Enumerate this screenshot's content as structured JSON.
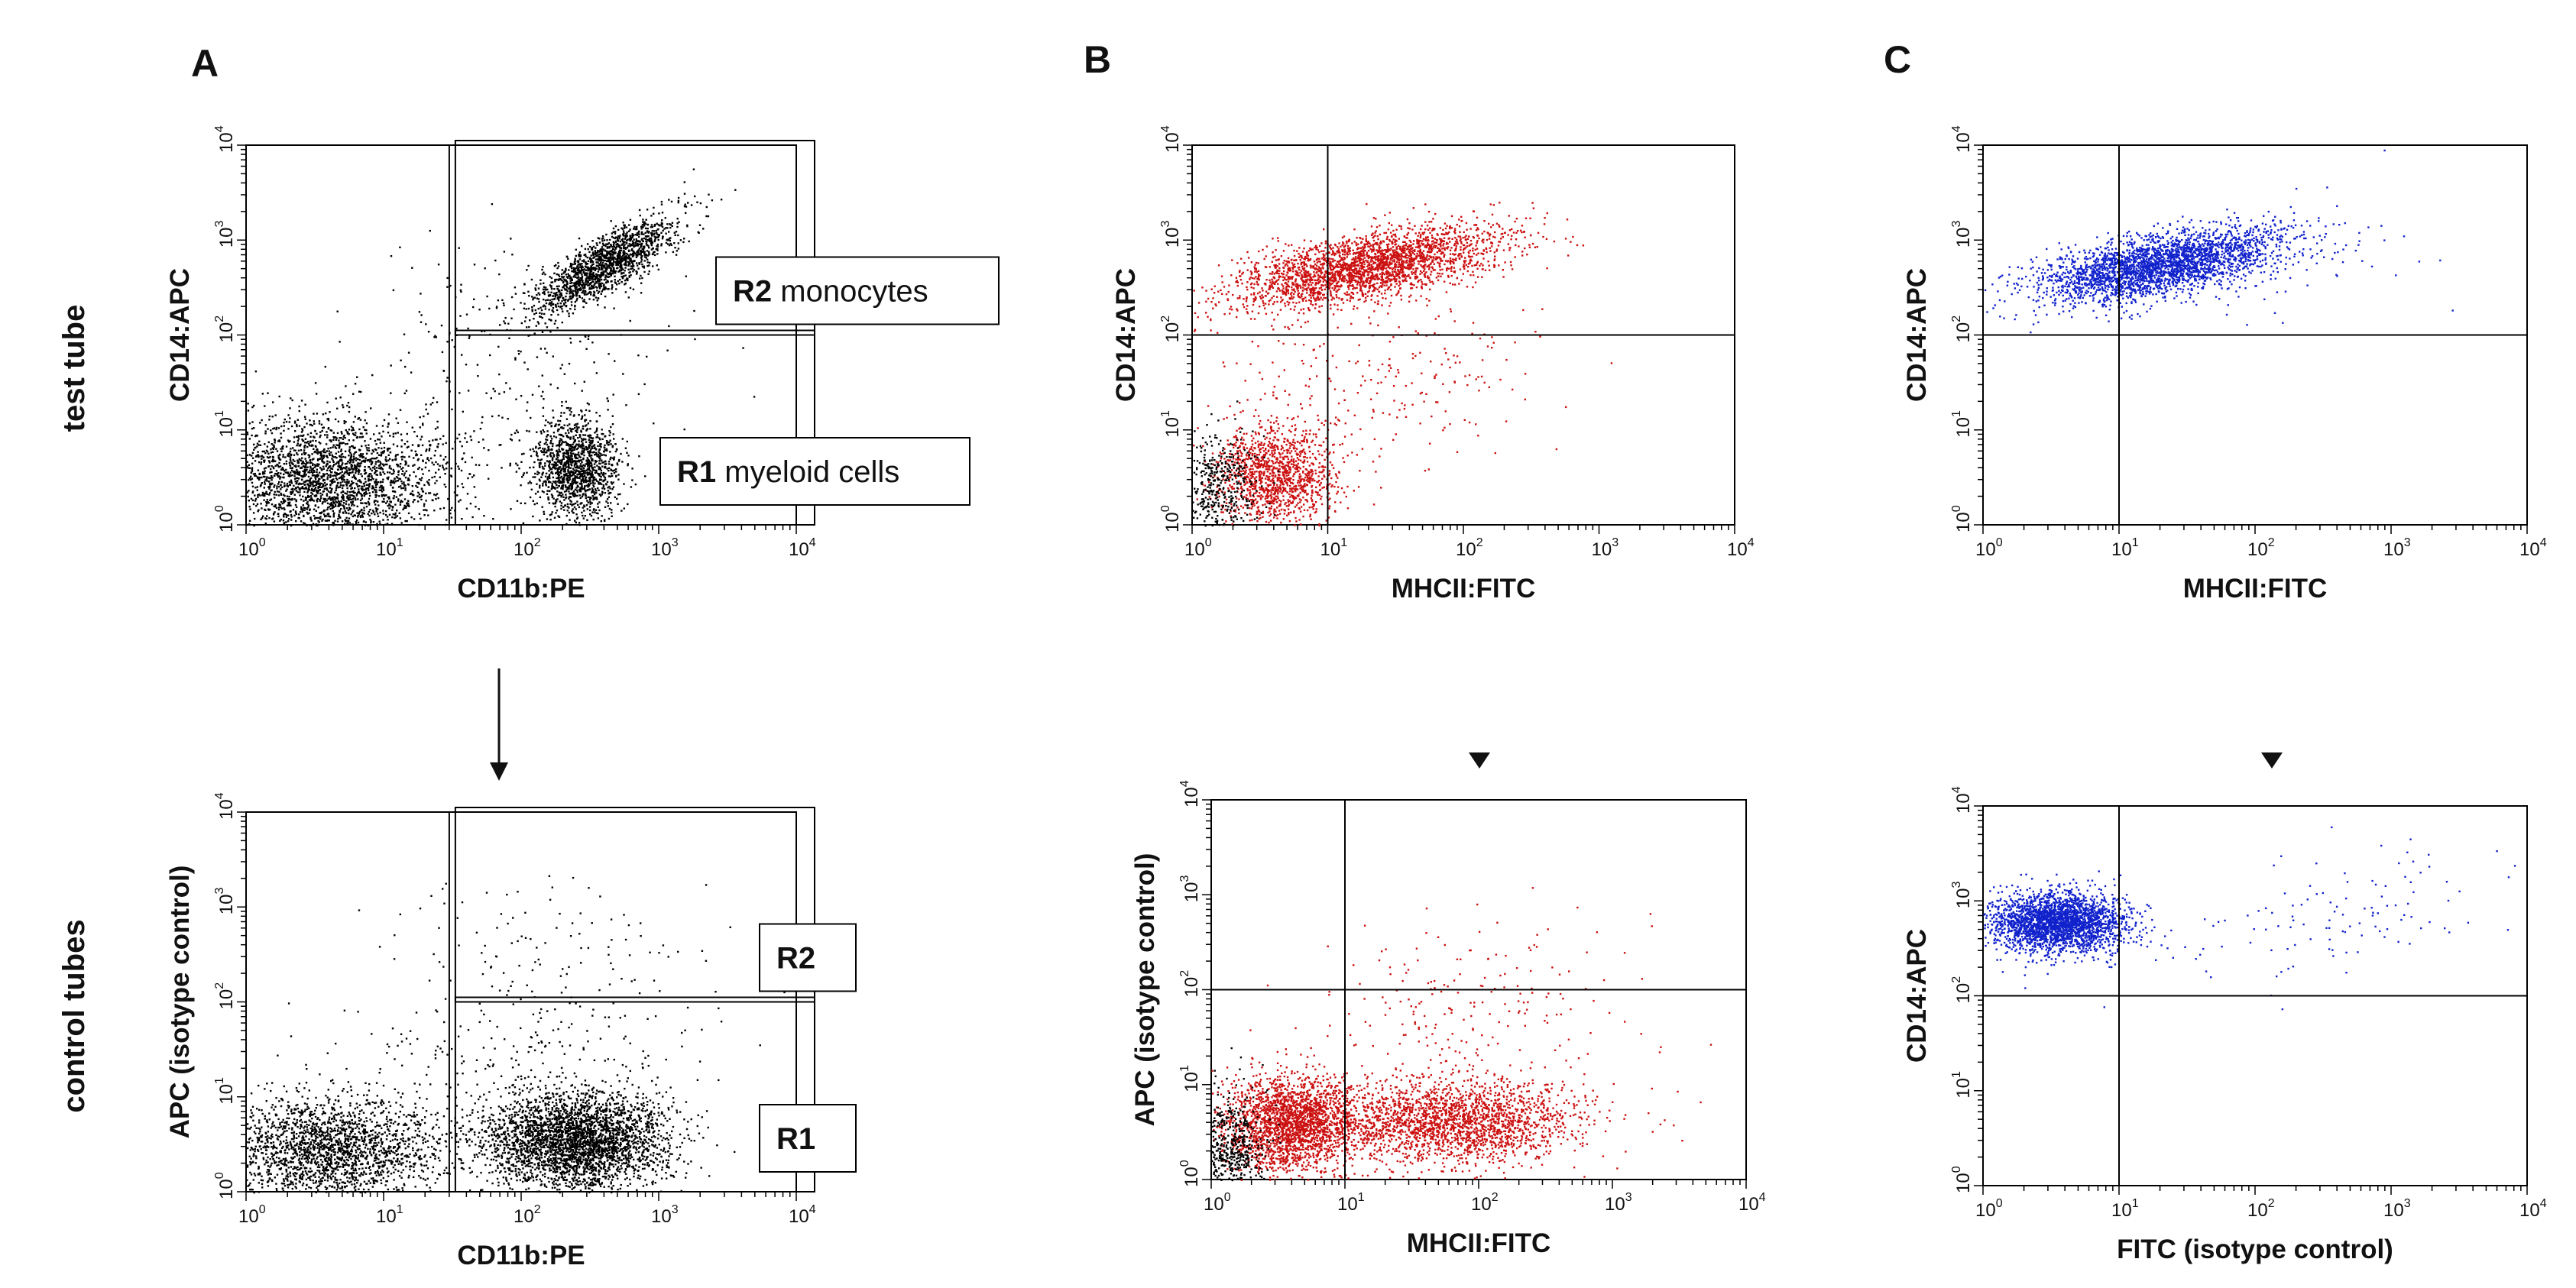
{
  "panel_letters": {
    "a": "A",
    "b": "B",
    "c": "C"
  },
  "row_labels": {
    "top": "test tube",
    "bottom": "control tubes"
  },
  "colors": {
    "points_black": "#000000",
    "points_red": "#cc1111",
    "points_blue": "#1122cc",
    "gates": "#000000"
  },
  "chart_data": [
    {
      "id": "A-top",
      "type": "scatter",
      "title": "",
      "xlabel": "CD11b:PE",
      "ylabel": "CD14:APC",
      "scale": "log",
      "xlim": [
        1,
        10000
      ],
      "ylim": [
        1,
        10000
      ],
      "tick_labels": [
        "10^0",
        "10^1",
        "10^2",
        "10^3",
        "10^4"
      ],
      "quadrant_lines": {
        "x": 30,
        "y": 100
      },
      "gates": [
        {
          "name": "R2",
          "text": "monocytes",
          "xrange": [
            30,
            10000
          ],
          "yrange": [
            100,
            10000
          ]
        },
        {
          "name": "R1",
          "text": "myeloid cells",
          "xrange": [
            30,
            10000
          ],
          "yrange": [
            1,
            100
          ]
        }
      ],
      "series": [
        {
          "color": "black",
          "clusters": [
            {
              "cx": 4,
              "cy": 3,
              "sx": 0.45,
              "sy": 0.33,
              "n": 2600
            },
            {
              "cx": 250,
              "cy": 4,
              "sx": 0.16,
              "sy": 0.25,
              "n": 1300
            },
            {
              "cx": 400,
              "cy": 550,
              "sx": 0.25,
              "sy": 0.15,
              "n": 1600,
              "slope": 0.8
            },
            {
              "cx": 100,
              "cy": 50,
              "sx": 0.6,
              "sy": 0.7,
              "n": 260
            }
          ]
        }
      ]
    },
    {
      "id": "A-bottom",
      "type": "scatter",
      "title": "",
      "xlabel": "CD11b:PE",
      "ylabel": "APC (isotype control)",
      "scale": "log",
      "xlim": [
        1,
        10000
      ],
      "ylim": [
        1,
        10000
      ],
      "tick_labels": [
        "10^0",
        "10^1",
        "10^2",
        "10^3",
        "10^4"
      ],
      "quadrant_lines": {
        "x": 30,
        "y": 100
      },
      "gates": [
        {
          "name": "R2",
          "text": "",
          "xrange": [
            30,
            10000
          ],
          "yrange": [
            100,
            10000
          ]
        },
        {
          "name": "R1",
          "text": "",
          "xrange": [
            30,
            10000
          ],
          "yrange": [
            1,
            100
          ]
        }
      ],
      "series": [
        {
          "color": "black",
          "clusters": [
            {
              "cx": 4,
              "cy": 2.8,
              "sx": 0.42,
              "sy": 0.3,
              "n": 2200
            },
            {
              "cx": 250,
              "cy": 3.5,
              "sx": 0.33,
              "sy": 0.25,
              "n": 3200
            },
            {
              "cx": 200,
              "cy": 400,
              "sx": 0.6,
              "sy": 0.35,
              "n": 90
            },
            {
              "cx": 100,
              "cy": 30,
              "sx": 0.6,
              "sy": 0.5,
              "n": 250
            }
          ]
        }
      ]
    },
    {
      "id": "B-top",
      "type": "scatter",
      "title": "",
      "xlabel": "MHCII:FITC",
      "ylabel": "CD14:APC",
      "scale": "log",
      "xlim": [
        1,
        10000
      ],
      "ylim": [
        1,
        10000
      ],
      "tick_labels": [
        "10^0",
        "10^1",
        "10^2",
        "10^3",
        "10^4"
      ],
      "quadrant_lines": {
        "x": 10,
        "y": 100
      },
      "series": [
        {
          "color": "red",
          "clusters": [
            {
              "cx": 20,
              "cy": 550,
              "sx": 0.5,
              "sy": 0.17,
              "n": 2700,
              "slope": 0.25
            },
            {
              "cx": 4,
              "cy": 3.5,
              "sx": 0.22,
              "sy": 0.28,
              "n": 1300
            },
            {
              "cx": 30,
              "cy": 40,
              "sx": 0.6,
              "sy": 0.5,
              "n": 250
            }
          ]
        },
        {
          "color": "black",
          "clusters": [
            {
              "cx": 1.5,
              "cy": 2.5,
              "sx": 0.15,
              "sy": 0.3,
              "n": 450
            }
          ]
        }
      ]
    },
    {
      "id": "B-bottom",
      "type": "scatter",
      "title": "",
      "xlabel": "MHCII:FITC",
      "ylabel": "APC (isotype control)",
      "scale": "log",
      "xlim": [
        1,
        10000
      ],
      "ylim": [
        1,
        10000
      ],
      "tick_labels": [
        "10^0",
        "10^1",
        "10^2",
        "10^3",
        "10^4"
      ],
      "quadrant_lines": {
        "x": 10,
        "y": 100
      },
      "series": [
        {
          "color": "red",
          "clusters": [
            {
              "cx": 4,
              "cy": 4,
              "sx": 0.25,
              "sy": 0.25,
              "n": 2200
            },
            {
              "cx": 60,
              "cy": 4,
              "sx": 0.5,
              "sy": 0.22,
              "n": 2200
            },
            {
              "cx": 100,
              "cy": 60,
              "sx": 0.6,
              "sy": 0.5,
              "n": 220
            }
          ]
        },
        {
          "color": "black",
          "clusters": [
            {
              "cx": 1.4,
              "cy": 2,
              "sx": 0.13,
              "sy": 0.3,
              "n": 550
            }
          ]
        }
      ]
    },
    {
      "id": "C-top",
      "type": "scatter",
      "title": "",
      "xlabel": "MHCII:FITC",
      "ylabel": "CD14:APC",
      "scale": "log",
      "xlim": [
        1,
        10000
      ],
      "ylim": [
        1,
        10000
      ],
      "tick_labels": [
        "10^0",
        "10^1",
        "10^2",
        "10^3",
        "10^4"
      ],
      "quadrant_lines": {
        "x": 10,
        "y": 100
      },
      "series": [
        {
          "color": "blue",
          "clusters": [
            {
              "cx": 20,
              "cy": 550,
              "sx": 0.45,
              "sy": 0.16,
              "n": 2900,
              "slope": 0.25
            },
            {
              "cx": 200,
              "cy": 600,
              "sx": 0.6,
              "sy": 0.3,
              "n": 60
            }
          ]
        }
      ]
    },
    {
      "id": "C-bottom",
      "type": "scatter",
      "title": "",
      "xlabel": "FITC (isotype control)",
      "ylabel": "CD14:APC",
      "scale": "log",
      "xlim": [
        1,
        10000
      ],
      "ylim": [
        1,
        10000
      ],
      "tick_labels": [
        "10^0",
        "10^1",
        "10^2",
        "10^3",
        "10^4"
      ],
      "quadrant_lines": {
        "x": 10,
        "y": 100
      },
      "series": [
        {
          "color": "blue",
          "clusters": [
            {
              "cx": 3.5,
              "cy": 600,
              "sx": 0.25,
              "sy": 0.15,
              "n": 2600
            },
            {
              "cx": 400,
              "cy": 700,
              "sx": 0.7,
              "sy": 0.3,
              "n": 120,
              "slope": 0.3
            }
          ]
        }
      ]
    }
  ]
}
